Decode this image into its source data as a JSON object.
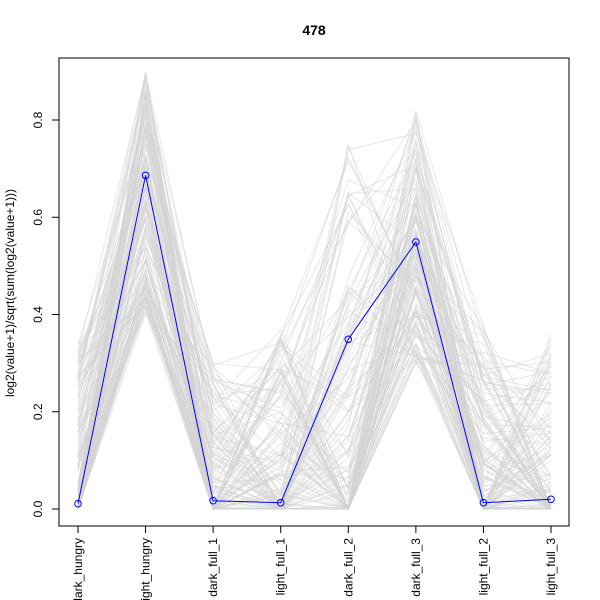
{
  "chart_data": {
    "type": "line",
    "title": "478",
    "ylabel": "log2(value+1)/sqrt(sum(log2(value+1)))",
    "xlabel": "",
    "categories": [
      "dark_hungry",
      "light_hungry",
      "dark_full_1",
      "light_full_1",
      "dark_full_2",
      "dark_full_3",
      "light_full_2",
      "light_full_3"
    ],
    "ylim": [
      -0.02,
      0.94
    ],
    "y_ticks": [
      0.0,
      0.2,
      0.4,
      0.6,
      0.8
    ],
    "y_tick_labels": [
      "0.0",
      "0.2",
      "0.4",
      "0.6",
      "0.8"
    ],
    "grid": false,
    "series": [
      {
        "values": [
          0.011,
          0.686,
          0.017,
          0.013,
          0.349,
          0.549,
          0.013,
          0.02
        ],
        "color": "#0000ff",
        "markers": "open-circle"
      }
    ],
    "background_lines": {
      "color": "#d3d3d3",
      "count": 478,
      "value_ranges": [
        [
          0.0,
          0.34
        ],
        [
          0.4,
          0.9
        ],
        [
          0.0,
          0.3
        ],
        [
          0.0,
          0.37
        ],
        [
          0.0,
          0.75
        ],
        [
          0.3,
          0.82
        ],
        [
          0.0,
          0.38
        ],
        [
          0.0,
          0.36
        ]
      ]
    }
  }
}
